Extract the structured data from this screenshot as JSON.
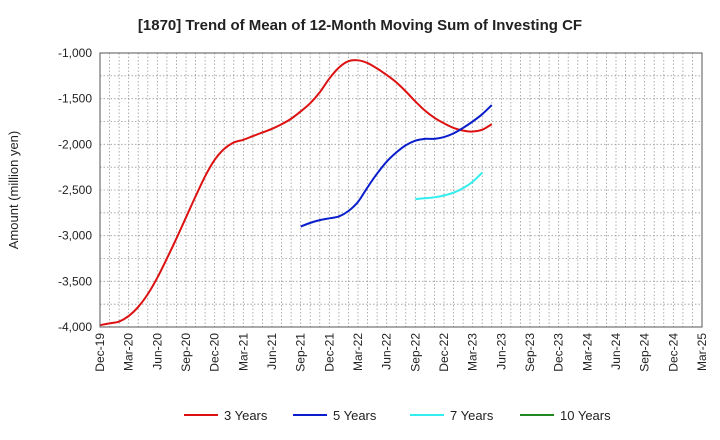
{
  "chart_data": {
    "type": "line",
    "title": "[1870]  Trend of Mean of 12-Month Moving Sum of Investing CF",
    "xlabel": "",
    "ylabel": "Amount (million yen)",
    "ylim": [
      -4000,
      -1000
    ],
    "yticks": [
      -1000,
      -1500,
      -2000,
      -2500,
      -3000,
      -3500,
      -4000
    ],
    "ytick_labels": [
      "-1,000",
      "-1,500",
      "-2,000",
      "-2,500",
      "-3,000",
      "-3,500",
      "-4,000"
    ],
    "xtick_labels": [
      "Dec-19",
      "Mar-20",
      "Jun-20",
      "Sep-20",
      "Dec-20",
      "Mar-21",
      "Jun-21",
      "Sep-21",
      "Dec-21",
      "Mar-22",
      "Jun-22",
      "Sep-22",
      "Dec-22",
      "Mar-23",
      "Jun-23",
      "Sep-23",
      "Dec-23",
      "Mar-24",
      "Jun-24",
      "Sep-24",
      "Dec-24",
      "Mar-25"
    ],
    "grid": true,
    "legend_position": "bottom",
    "series": [
      {
        "name": "3 Years",
        "color": "#dd1111",
        "start_index": 0,
        "values": [
          -3980,
          -3960,
          -3940,
          -3880,
          -3780,
          -3640,
          -3460,
          -3250,
          -3030,
          -2800,
          -2570,
          -2350,
          -2170,
          -2050,
          -1980,
          -1950,
          -1910,
          -1870,
          -1830,
          -1780,
          -1720,
          -1640,
          -1550,
          -1430,
          -1280,
          -1160,
          -1090,
          -1080,
          -1110,
          -1170,
          -1240,
          -1320,
          -1420,
          -1530,
          -1630,
          -1710,
          -1770,
          -1820,
          -1850,
          -1860,
          -1840,
          -1780
        ]
      },
      {
        "name": "5 Years",
        "color": "#0a1ecc",
        "start_index": 21,
        "values": [
          -2900,
          -2860,
          -2830,
          -2810,
          -2790,
          -2730,
          -2630,
          -2470,
          -2320,
          -2190,
          -2090,
          -2010,
          -1960,
          -1940,
          -1940,
          -1920,
          -1880,
          -1820,
          -1750,
          -1670,
          -1570
        ]
      },
      {
        "name": "7 Years",
        "color": "#33eeee",
        "start_index": 33,
        "values": [
          -2600,
          -2590,
          -2580,
          -2560,
          -2530,
          -2480,
          -2410,
          -2310
        ]
      },
      {
        "name": "10 Years",
        "color": "#228822",
        "start_index": 0,
        "values": []
      }
    ]
  }
}
